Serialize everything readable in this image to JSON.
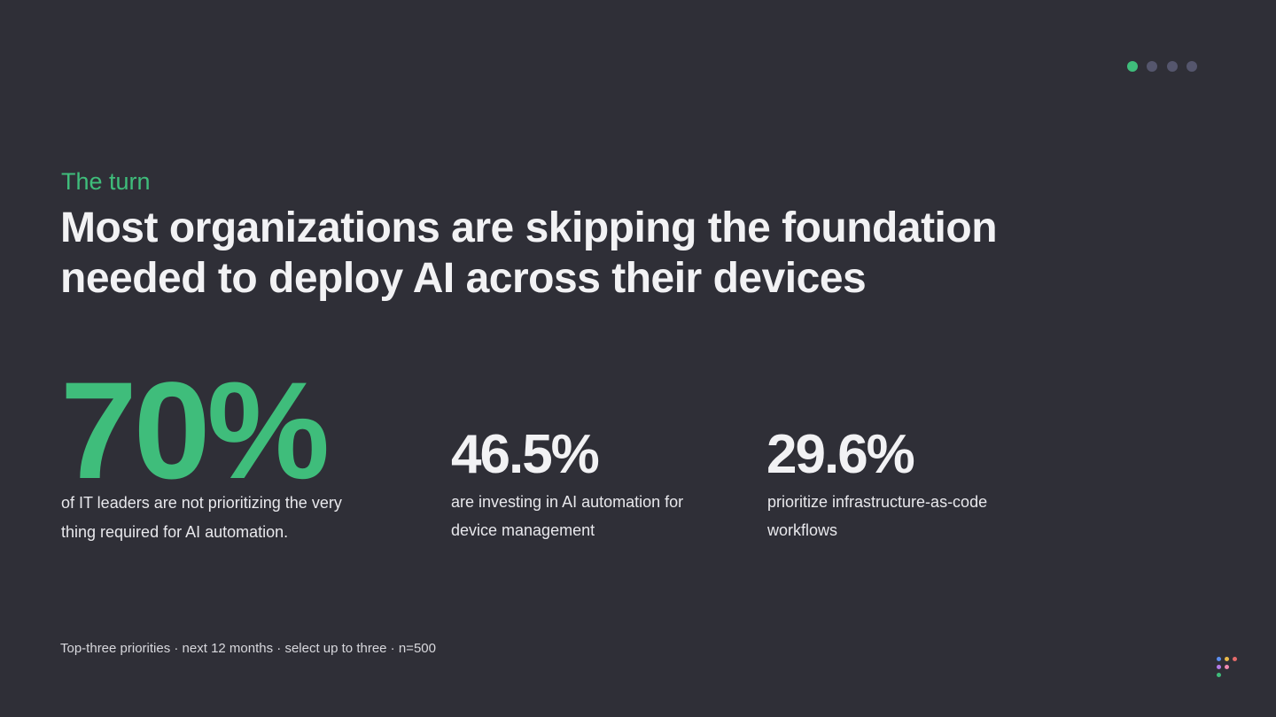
{
  "eyebrow": "The turn",
  "title": [
    "Most organizations are skipping the foundation",
    "needed to deploy AI across their devices"
  ],
  "stats": [
    {
      "value": "70%",
      "description": [
        "of IT leaders are not prioritizing the very",
        "thing required for AI automation."
      ]
    },
    {
      "value": "46.5%",
      "description": [
        "are investing in AI automation for",
        "device management"
      ]
    },
    {
      "value": "29.6%",
      "description": [
        "prioritize infrastructure-as-code",
        "workflows"
      ]
    }
  ],
  "footnote": "Top-three priorities · next 12 months · select up to three · n=500"
}
